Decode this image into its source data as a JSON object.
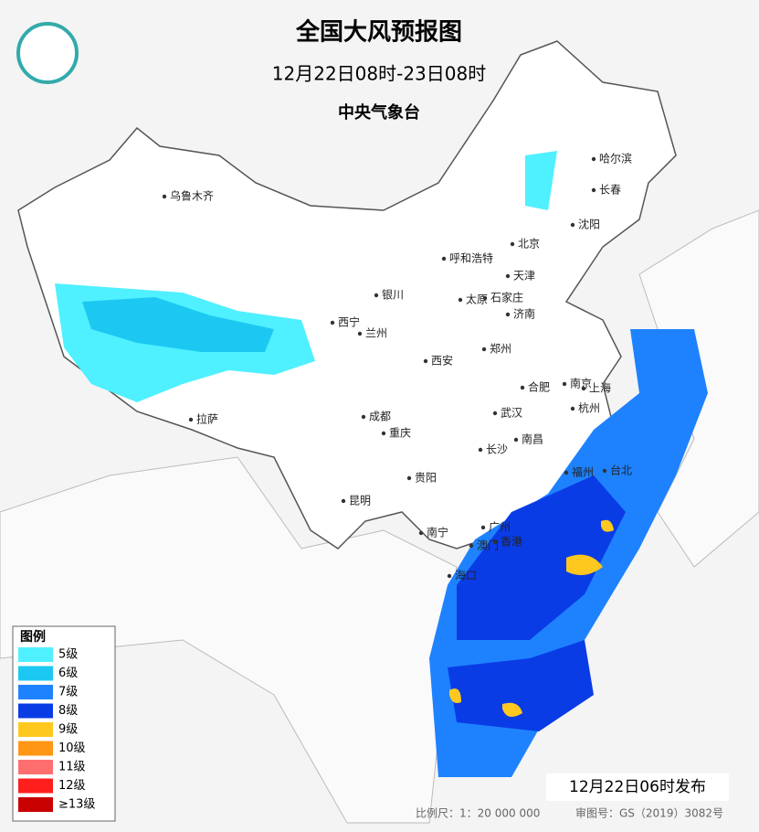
{
  "header": {
    "title": "全国大风预报图",
    "period": "12月22日08时-23日08时",
    "agency": "中央气象台"
  },
  "legend": {
    "title": "图例",
    "items": [
      {
        "label": "5级",
        "color": "#4ff0ff"
      },
      {
        "label": "6级",
        "color": "#1cc8f2"
      },
      {
        "label": "7级",
        "color": "#1e82ff"
      },
      {
        "label": "8级",
        "color": "#0a3ce6"
      },
      {
        "label": "9级",
        "color": "#ffc81e"
      },
      {
        "label": "10级",
        "color": "#ff9614"
      },
      {
        "label": "11级",
        "color": "#ff6e6e"
      },
      {
        "label": "12级",
        "color": "#ff1e1e"
      },
      {
        "label": "≥13级",
        "color": "#c80000"
      }
    ]
  },
  "cities": [
    "哈尔滨",
    "长春",
    "沈阳",
    "乌鲁木齐",
    "北京",
    "呼和浩特",
    "天津",
    "银川",
    "太原",
    "石家庄",
    "济南",
    "西宁",
    "兰州",
    "郑州",
    "西安",
    "南京",
    "合肥",
    "上海",
    "杭州",
    "拉萨",
    "成都",
    "武汉",
    "重庆",
    "长沙",
    "南昌",
    "福州",
    "台北",
    "贵阳",
    "昆明",
    "南宁",
    "广州",
    "香港",
    "澳门",
    "海口"
  ],
  "footer": {
    "issued": "12月22日06时发布",
    "scale": "比例尺：1：20 000 000",
    "approval": "审图号：GS（2019）3082号"
  }
}
